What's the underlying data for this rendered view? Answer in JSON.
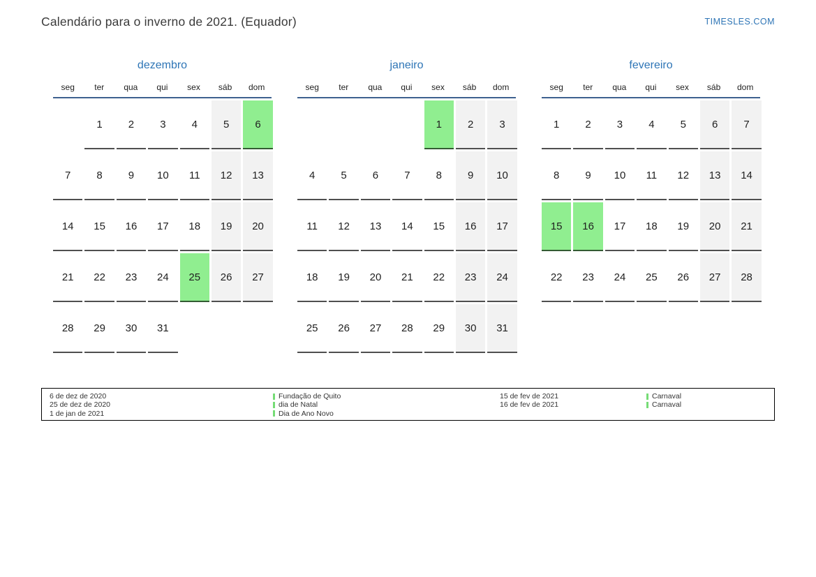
{
  "header": {
    "title": "Calendário para o inverno de 2021. (Equador)",
    "site": "TIMESLES.COM"
  },
  "weekdays": [
    "seg",
    "ter",
    "qua",
    "qui",
    "sex",
    "sáb",
    "dom"
  ],
  "months": [
    {
      "name": "dezembro",
      "weeks": [
        [
          null,
          1,
          2,
          3,
          4,
          5,
          6
        ],
        [
          7,
          8,
          9,
          10,
          11,
          12,
          13
        ],
        [
          14,
          15,
          16,
          17,
          18,
          19,
          20
        ],
        [
          21,
          22,
          23,
          24,
          25,
          26,
          27
        ],
        [
          28,
          29,
          30,
          31,
          null,
          null,
          null
        ]
      ],
      "holidays": [
        6,
        25
      ]
    },
    {
      "name": "janeiro",
      "weeks": [
        [
          null,
          null,
          null,
          null,
          1,
          2,
          3
        ],
        [
          4,
          5,
          6,
          7,
          8,
          9,
          10
        ],
        [
          11,
          12,
          13,
          14,
          15,
          16,
          17
        ],
        [
          18,
          19,
          20,
          21,
          22,
          23,
          24
        ],
        [
          25,
          26,
          27,
          28,
          29,
          30,
          31
        ]
      ],
      "holidays": [
        1
      ]
    },
    {
      "name": "fevereiro",
      "weeks": [
        [
          1,
          2,
          3,
          4,
          5,
          6,
          7
        ],
        [
          8,
          9,
          10,
          11,
          12,
          13,
          14
        ],
        [
          15,
          16,
          17,
          18,
          19,
          20,
          21
        ],
        [
          22,
          23,
          24,
          25,
          26,
          27,
          28
        ]
      ],
      "holidays": [
        15,
        16
      ]
    }
  ],
  "legend": {
    "groups": [
      {
        "entries": [
          {
            "date": "6 de dez de 2020",
            "name": "Fundação de Quito"
          },
          {
            "date": "25 de dez de 2020",
            "name": "dia de Natal"
          },
          {
            "date": "1 de jan de 2021",
            "name": "Dia de Ano Novo"
          }
        ]
      },
      {
        "entries": [
          {
            "date": "15 de fev de 2021",
            "name": "Carnaval"
          },
          {
            "date": "16 de fev de 2021",
            "name": "Carnaval"
          }
        ]
      }
    ]
  },
  "colors": {
    "accent_blue": "#2e75b6",
    "header_line": "#3e618f",
    "holiday_green": "#90ee90",
    "weekend_gray": "#f2f2f2",
    "cell_border": "#4f4f4f",
    "legend_bar_green": "#76dc76"
  }
}
